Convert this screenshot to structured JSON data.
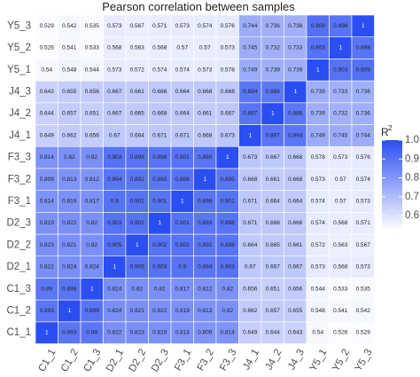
{
  "chart_data": {
    "type": "heatmap",
    "title": "Pearson correlation between samples",
    "samples": [
      "C1_1",
      "C1_2",
      "C1_3",
      "D2_1",
      "D2_2",
      "D2_3",
      "F3_1",
      "F3_2",
      "F3_3",
      "J4_1",
      "J4_2",
      "J4_3",
      "Y5_1",
      "Y5_2",
      "Y5_3"
    ],
    "matrix": [
      [
        1,
        0.893,
        0.89,
        0.822,
        0.823,
        0.819,
        0.814,
        0.809,
        0.814,
        0.649,
        0.644,
        0.643,
        0.54,
        0.526,
        0.529
      ],
      [
        0.893,
        1,
        0.898,
        0.824,
        0.821,
        0.822,
        0.819,
        0.813,
        0.82,
        0.662,
        0.657,
        0.655,
        0.548,
        0.541,
        0.542
      ],
      [
        0.89,
        0.898,
        1,
        0.824,
        0.82,
        0.82,
        0.817,
        0.812,
        0.82,
        0.656,
        0.651,
        0.656,
        0.544,
        0.533,
        0.535
      ],
      [
        0.822,
        0.824,
        0.824,
        1,
        0.905,
        0.903,
        0.9,
        0.894,
        0.903,
        0.67,
        0.667,
        0.667,
        0.573,
        0.568,
        0.573
      ],
      [
        0.823,
        0.821,
        0.82,
        0.905,
        1,
        0.902,
        0.902,
        0.892,
        0.898,
        0.664,
        0.665,
        0.661,
        0.572,
        0.563,
        0.567
      ],
      [
        0.819,
        0.822,
        0.82,
        0.903,
        0.902,
        1,
        0.901,
        0.893,
        0.898,
        0.671,
        0.668,
        0.666,
        0.574,
        0.568,
        0.571
      ],
      [
        0.814,
        0.819,
        0.817,
        0.9,
        0.902,
        0.901,
        1,
        0.898,
        0.901,
        0.671,
        0.664,
        0.664,
        0.574,
        0.57,
        0.573
      ],
      [
        0.809,
        0.813,
        0.812,
        0.894,
        0.892,
        0.893,
        0.898,
        1,
        0.895,
        0.668,
        0.661,
        0.668,
        0.573,
        0.57,
        0.574
      ],
      [
        0.814,
        0.82,
        0.82,
        0.903,
        0.898,
        0.898,
        0.901,
        0.895,
        1,
        0.673,
        0.667,
        0.668,
        0.578,
        0.573,
        0.576
      ],
      [
        0.649,
        0.662,
        0.656,
        0.67,
        0.664,
        0.671,
        0.671,
        0.668,
        0.673,
        1,
        0.897,
        0.894,
        0.749,
        0.745,
        0.744
      ],
      [
        0.644,
        0.657,
        0.651,
        0.667,
        0.665,
        0.668,
        0.664,
        0.661,
        0.667,
        0.897,
        1,
        0.886,
        0.739,
        0.732,
        0.736
      ],
      [
        0.643,
        0.655,
        0.656,
        0.667,
        0.661,
        0.666,
        0.664,
        0.668,
        0.668,
        0.894,
        0.886,
        1,
        0.739,
        0.733,
        0.736
      ],
      [
        0.54,
        0.548,
        0.544,
        0.573,
        0.572,
        0.574,
        0.574,
        0.573,
        0.578,
        0.749,
        0.739,
        0.739,
        1,
        0.903,
        0.909
      ],
      [
        0.526,
        0.541,
        0.533,
        0.568,
        0.563,
        0.568,
        0.57,
        0.57,
        0.573,
        0.745,
        0.732,
        0.733,
        0.903,
        1,
        0.898
      ],
      [
        0.529,
        0.542,
        0.535,
        0.573,
        0.567,
        0.571,
        0.573,
        0.574,
        0.576,
        0.744,
        0.736,
        0.736,
        0.909,
        0.898,
        1
      ]
    ],
    "legend": {
      "title": "R",
      "title_superscript": "2",
      "ticks": [
        "1.0",
        "0.9",
        "0.8",
        "0.7",
        "0.6"
      ],
      "tick_values": [
        1.0,
        0.9,
        0.8,
        0.7,
        0.6
      ],
      "range": [
        0.52,
        1.0
      ],
      "placement": "right"
    },
    "colors": {
      "low": "#ffffff",
      "high": "#2b4ef2"
    },
    "row_order": "bottom-to-top"
  }
}
